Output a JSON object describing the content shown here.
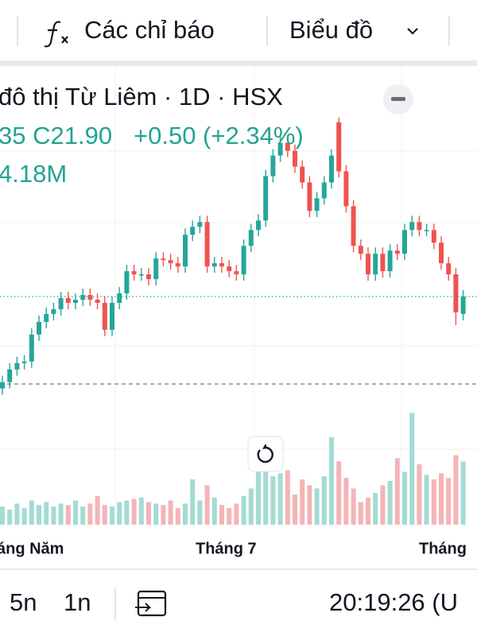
{
  "toolbar": {
    "indicators": "Các chỉ báo",
    "chart_type": "Biểu đồ"
  },
  "legend": {
    "title": "đô thị Từ Liêm · 1D · HSX",
    "ohlc_prefix": "35 C21.90",
    "change": "+0.50 (+2.34%)",
    "volume": "4.18M"
  },
  "chart_data": {
    "type": "candlestick",
    "x_tick_labels": [
      "áng Năm",
      "Tháng 7",
      "Tháng"
    ],
    "open": [
      19.0,
      19.2,
      19.6,
      19.8,
      19.85,
      20.7,
      21.1,
      21.35,
      21.5,
      21.85,
      21.7,
      21.8,
      21.95,
      21.8,
      21.7,
      20.85,
      21.7,
      22.0,
      22.7,
      22.6,
      22.6,
      22.45,
      23.1,
      23.05,
      22.95,
      22.85,
      23.85,
      24.1,
      24.25,
      22.85,
      22.95,
      22.85,
      22.7,
      22.6,
      23.5,
      24.0,
      24.3,
      25.7,
      26.35,
      26.75,
      26.5,
      26.0,
      25.5,
      24.6,
      25.0,
      25.5,
      27.4,
      25.85,
      24.75,
      23.5,
      23.25,
      22.6,
      23.25,
      22.7,
      23.35,
      23.25,
      24.0,
      24.25,
      24.0,
      24.0,
      23.6,
      22.95,
      22.6,
      21.35
    ],
    "high": [
      19.4,
      19.8,
      20.0,
      20.05,
      20.9,
      21.3,
      21.55,
      21.7,
      22.05,
      22.05,
      22.0,
      22.15,
      22.15,
      22.0,
      21.9,
      21.9,
      22.2,
      22.9,
      22.9,
      22.8,
      22.8,
      23.3,
      23.3,
      23.25,
      23.15,
      24.05,
      24.3,
      24.45,
      24.45,
      23.15,
      23.15,
      23.05,
      22.9,
      23.7,
      24.2,
      24.5,
      25.9,
      26.55,
      27.0,
      26.95,
      26.7,
      26.2,
      25.7,
      25.2,
      25.7,
      26.55,
      27.55,
      26.05,
      24.95,
      23.7,
      23.45,
      23.45,
      23.45,
      23.55,
      23.55,
      24.2,
      24.45,
      24.45,
      24.2,
      24.2,
      23.8,
      23.15,
      22.8,
      22.1
    ],
    "low": [
      18.8,
      19.0,
      19.4,
      19.6,
      19.65,
      20.5,
      20.9,
      21.15,
      21.3,
      21.5,
      21.5,
      21.6,
      21.6,
      21.5,
      20.65,
      20.65,
      21.5,
      21.8,
      22.4,
      22.4,
      22.25,
      22.25,
      22.85,
      22.75,
      22.65,
      22.65,
      23.65,
      23.9,
      22.65,
      22.65,
      22.65,
      22.5,
      22.4,
      22.4,
      23.3,
      23.8,
      24.1,
      25.5,
      26.15,
      26.3,
      25.8,
      25.3,
      24.4,
      24.4,
      24.8,
      25.3,
      25.65,
      24.55,
      23.3,
      23.05,
      22.4,
      22.4,
      22.5,
      22.5,
      23.05,
      23.05,
      23.8,
      23.8,
      23.8,
      23.4,
      22.75,
      22.4,
      21.0,
      21.15
    ],
    "close": [
      19.2,
      19.6,
      19.8,
      19.85,
      20.7,
      21.1,
      21.35,
      21.5,
      21.85,
      21.7,
      21.8,
      21.95,
      21.8,
      21.7,
      20.85,
      21.7,
      22.0,
      22.7,
      22.6,
      22.6,
      22.45,
      23.1,
      23.05,
      22.95,
      22.85,
      23.85,
      24.1,
      24.25,
      22.85,
      22.95,
      22.85,
      22.7,
      22.6,
      23.5,
      24.0,
      24.3,
      25.7,
      26.35,
      26.75,
      26.5,
      26.0,
      25.5,
      24.6,
      25.0,
      25.5,
      26.35,
      25.85,
      24.75,
      23.5,
      23.25,
      22.6,
      23.25,
      22.7,
      23.35,
      23.25,
      24.0,
      24.25,
      24.0,
      24.0,
      23.6,
      22.95,
      22.6,
      21.4,
      21.9
    ],
    "volume": [
      1.2,
      1.0,
      1.4,
      1.1,
      1.6,
      1.3,
      1.5,
      1.2,
      1.4,
      1.3,
      1.6,
      1.2,
      1.4,
      1.9,
      1.3,
      1.2,
      1.5,
      1.6,
      1.7,
      1.8,
      1.5,
      1.4,
      1.3,
      1.6,
      1.1,
      1.4,
      3.0,
      1.6,
      2.6,
      1.8,
      1.3,
      1.1,
      1.4,
      1.9,
      2.4,
      3.5,
      4.4,
      3.2,
      3.4,
      3.6,
      2.0,
      3.0,
      2.6,
      2.4,
      3.2,
      5.8,
      4.2,
      3.1,
      2.4,
      1.5,
      1.8,
      2.1,
      2.6,
      2.9,
      4.4,
      3.5,
      7.4,
      4.0,
      3.3,
      3.0,
      3.4,
      3.1,
      4.6,
      4.18
    ],
    "ylim": [
      14.7,
      29.0
    ],
    "y2lim": [
      0,
      30
    ],
    "up_color": "#26a69a",
    "down_color": "#ef5350",
    "up_volume_color": "#a3dbd3",
    "down_volume_color": "#f5b4b6"
  },
  "bottom_bar": {
    "range_5y": "5n",
    "range_1y": "1n",
    "clock": "20:19:26 (U"
  }
}
